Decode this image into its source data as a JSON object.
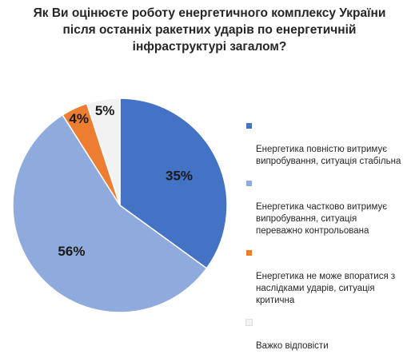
{
  "chart_data": {
    "type": "pie",
    "title": "Як Ви оцінюєте роботу енергетичного комплексу України\nпісля останніх ракетних ударів по енергетичній\nінфраструктурі загалом?",
    "categories": [
      "Енергетика повністю витримує\nвипробування, ситуація стабільна",
      "Енергетика частково витримує\nвипробування, ситуація\nпереважно контрольована",
      "Енергетика не може впоратися з\nнаслідками ударів, ситуація\nкритична",
      "Важко відповісти"
    ],
    "values": [
      35,
      56,
      4,
      5
    ],
    "data_labels": [
      "35%",
      "56%",
      "4%",
      "5%"
    ],
    "colors": [
      "#4472C4",
      "#8FAADC",
      "#ED7D31",
      "#F2F2F2"
    ],
    "legend_position": "right"
  }
}
